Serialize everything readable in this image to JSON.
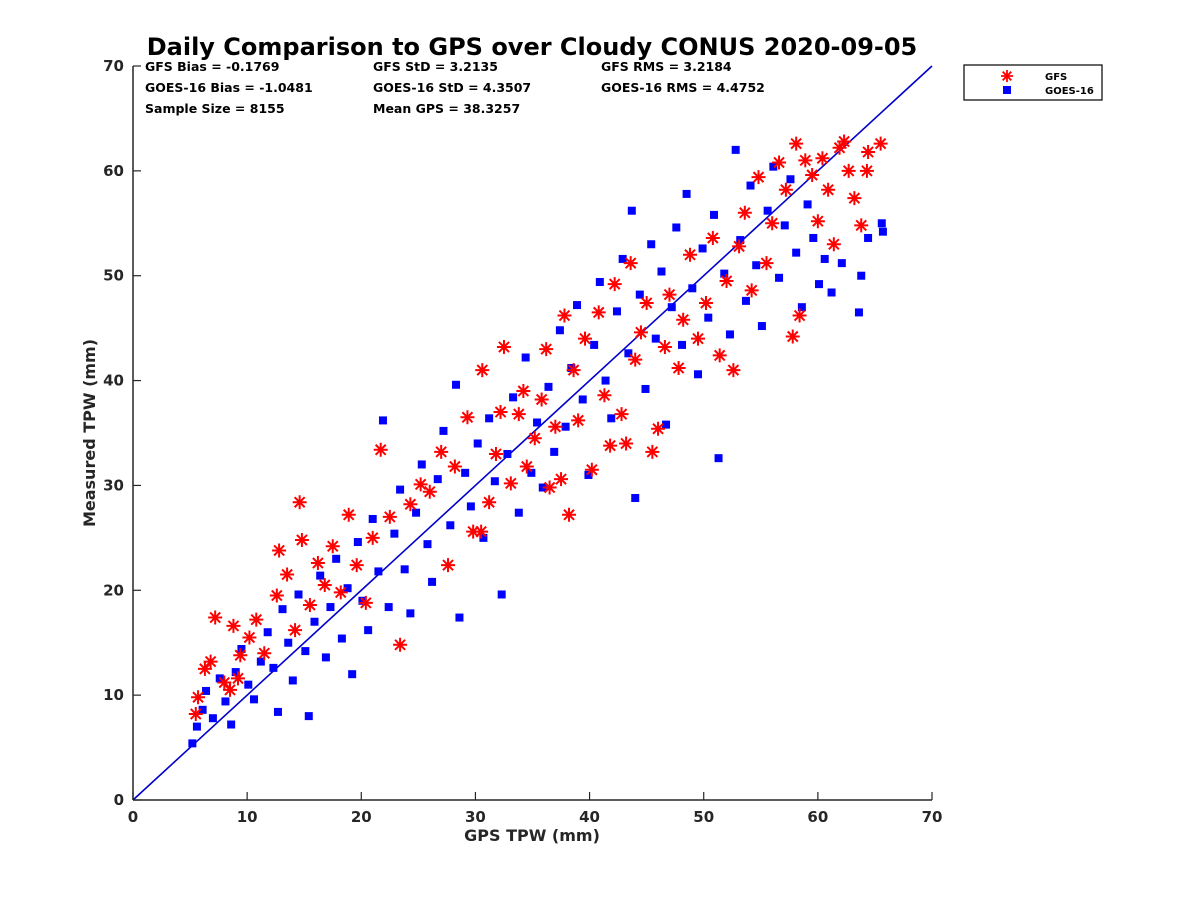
{
  "chart_data": {
    "type": "scatter",
    "title": "Daily Comparison to GPS over Cloudy CONUS 2020-09-05",
    "xlabel": "GPS TPW (mm)",
    "ylabel": "Measured TPW (mm)",
    "xlim": [
      0,
      70
    ],
    "ylim": [
      0,
      70
    ],
    "xticks": [
      "0",
      "10",
      "20",
      "30",
      "40",
      "50",
      "60",
      "70"
    ],
    "yticks": [
      "0",
      "10",
      "20",
      "30",
      "40",
      "50",
      "60",
      "70"
    ],
    "grid": false,
    "legend_position": "outside top-right",
    "stats": {
      "gfs_bias": "GFS Bias = -0.1769",
      "goes_bias": "GOES-16 Bias = -1.0481",
      "sample_size": "Sample Size = 8155",
      "gfs_std": "GFS StD = 3.2135",
      "goes_std": "GOES-16 StD = 4.3507",
      "mean_gps": "Mean GPS = 38.3257",
      "gfs_rms": "GFS RMS = 3.2184",
      "goes_rms": "GOES-16 RMS = 4.4752"
    },
    "reference_line": {
      "x": [
        0,
        70
      ],
      "y": [
        0,
        70
      ],
      "color": "#0000cc"
    },
    "series": [
      {
        "name": "GFS",
        "marker": "asterisk",
        "color": "#ff0000",
        "points": [
          [
            5.5,
            8.2
          ],
          [
            5.7,
            9.8
          ],
          [
            6.3,
            12.5
          ],
          [
            6.8,
            13.2
          ],
          [
            7.2,
            17.4
          ],
          [
            8.0,
            11.2
          ],
          [
            8.5,
            10.5
          ],
          [
            8.8,
            16.6
          ],
          [
            9.2,
            11.6
          ],
          [
            9.4,
            13.8
          ],
          [
            10.2,
            15.5
          ],
          [
            10.8,
            17.2
          ],
          [
            11.5,
            14.0
          ],
          [
            12.6,
            19.5
          ],
          [
            12.8,
            23.8
          ],
          [
            13.5,
            21.5
          ],
          [
            14.2,
            16.2
          ],
          [
            14.6,
            28.4
          ],
          [
            14.8,
            24.8
          ],
          [
            15.5,
            18.6
          ],
          [
            16.2,
            22.6
          ],
          [
            16.8,
            20.5
          ],
          [
            17.5,
            24.2
          ],
          [
            18.2,
            19.8
          ],
          [
            18.9,
            27.2
          ],
          [
            19.6,
            22.4
          ],
          [
            20.4,
            18.8
          ],
          [
            21.0,
            25.0
          ],
          [
            21.7,
            33.4
          ],
          [
            22.5,
            27.0
          ],
          [
            23.4,
            14.8
          ],
          [
            24.3,
            28.2
          ],
          [
            25.2,
            30.1
          ],
          [
            26.0,
            29.4
          ],
          [
            27.0,
            33.2
          ],
          [
            27.6,
            22.4
          ],
          [
            28.2,
            31.8
          ],
          [
            29.3,
            36.5
          ],
          [
            29.8,
            25.6
          ],
          [
            30.5,
            25.6
          ],
          [
            30.6,
            41.0
          ],
          [
            31.2,
            28.4
          ],
          [
            31.8,
            33.0
          ],
          [
            32.2,
            37.0
          ],
          [
            32.5,
            43.2
          ],
          [
            33.1,
            30.2
          ],
          [
            33.8,
            36.8
          ],
          [
            34.2,
            39.0
          ],
          [
            34.5,
            31.8
          ],
          [
            35.2,
            34.5
          ],
          [
            35.8,
            38.2
          ],
          [
            36.2,
            43.0
          ],
          [
            36.5,
            29.8
          ],
          [
            37.0,
            35.6
          ],
          [
            37.5,
            30.6
          ],
          [
            37.8,
            46.2
          ],
          [
            38.2,
            27.2
          ],
          [
            38.6,
            41.0
          ],
          [
            39.0,
            36.2
          ],
          [
            39.6,
            44.0
          ],
          [
            40.2,
            31.5
          ],
          [
            40.8,
            46.5
          ],
          [
            41.3,
            38.6
          ],
          [
            41.8,
            33.8
          ],
          [
            42.2,
            49.2
          ],
          [
            42.8,
            36.8
          ],
          [
            43.2,
            34.0
          ],
          [
            43.6,
            51.2
          ],
          [
            44.0,
            42.0
          ],
          [
            44.5,
            44.6
          ],
          [
            45.0,
            47.4
          ],
          [
            45.5,
            33.2
          ],
          [
            46.0,
            35.4
          ],
          [
            46.6,
            43.2
          ],
          [
            47.0,
            48.2
          ],
          [
            47.8,
            41.2
          ],
          [
            48.2,
            45.8
          ],
          [
            48.8,
            52.0
          ],
          [
            49.5,
            44.0
          ],
          [
            50.2,
            47.4
          ],
          [
            50.8,
            53.6
          ],
          [
            51.4,
            42.4
          ],
          [
            52.0,
            49.5
          ],
          [
            52.6,
            41.0
          ],
          [
            53.1,
            52.8
          ],
          [
            53.6,
            56.0
          ],
          [
            54.2,
            48.6
          ],
          [
            54.8,
            59.4
          ],
          [
            55.5,
            51.2
          ],
          [
            56.0,
            55.0
          ],
          [
            56.6,
            60.8
          ],
          [
            57.2,
            58.2
          ],
          [
            57.8,
            44.2
          ],
          [
            58.1,
            62.6
          ],
          [
            58.4,
            46.2
          ],
          [
            58.9,
            61.0
          ],
          [
            59.5,
            59.6
          ],
          [
            60.0,
            55.2
          ],
          [
            60.4,
            61.2
          ],
          [
            60.9,
            58.2
          ],
          [
            61.4,
            53.0
          ],
          [
            61.9,
            62.2
          ],
          [
            62.3,
            62.8
          ],
          [
            62.7,
            60.0
          ],
          [
            63.2,
            57.4
          ],
          [
            63.8,
            54.8
          ],
          [
            64.3,
            60.0
          ],
          [
            64.4,
            61.8
          ],
          [
            65.5,
            62.6
          ]
        ]
      },
      {
        "name": "GOES-16",
        "marker": "square",
        "color": "#0000ff",
        "points": [
          [
            5.2,
            5.4
          ],
          [
            5.6,
            7.0
          ],
          [
            6.1,
            8.6
          ],
          [
            6.4,
            10.4
          ],
          [
            7.0,
            7.8
          ],
          [
            7.6,
            11.6
          ],
          [
            8.1,
            9.4
          ],
          [
            8.6,
            7.2
          ],
          [
            9.0,
            12.2
          ],
          [
            9.5,
            14.4
          ],
          [
            10.1,
            11.0
          ],
          [
            10.6,
            9.6
          ],
          [
            11.2,
            13.2
          ],
          [
            11.8,
            16.0
          ],
          [
            12.3,
            12.6
          ],
          [
            12.7,
            8.4
          ],
          [
            13.1,
            18.2
          ],
          [
            13.6,
            15.0
          ],
          [
            14.0,
            11.4
          ],
          [
            14.5,
            19.6
          ],
          [
            15.1,
            14.2
          ],
          [
            15.4,
            8.0
          ],
          [
            15.9,
            17.0
          ],
          [
            16.4,
            21.4
          ],
          [
            16.9,
            13.6
          ],
          [
            17.3,
            18.4
          ],
          [
            17.8,
            23.0
          ],
          [
            18.3,
            15.4
          ],
          [
            18.8,
            20.2
          ],
          [
            19.2,
            12.0
          ],
          [
            19.7,
            24.6
          ],
          [
            20.1,
            19.0
          ],
          [
            20.6,
            16.2
          ],
          [
            21.0,
            26.8
          ],
          [
            21.5,
            21.8
          ],
          [
            21.9,
            36.2
          ],
          [
            22.4,
            18.4
          ],
          [
            22.9,
            25.4
          ],
          [
            23.4,
            29.6
          ],
          [
            23.8,
            22.0
          ],
          [
            24.3,
            17.8
          ],
          [
            24.8,
            27.4
          ],
          [
            25.3,
            32.0
          ],
          [
            25.8,
            24.4
          ],
          [
            26.2,
            20.8
          ],
          [
            26.7,
            30.6
          ],
          [
            27.2,
            35.2
          ],
          [
            27.8,
            26.2
          ],
          [
            28.3,
            39.6
          ],
          [
            28.6,
            17.4
          ],
          [
            29.1,
            31.2
          ],
          [
            29.6,
            28.0
          ],
          [
            30.2,
            34.0
          ],
          [
            30.7,
            25.0
          ],
          [
            31.2,
            36.4
          ],
          [
            31.7,
            30.4
          ],
          [
            32.3,
            19.6
          ],
          [
            32.8,
            33.0
          ],
          [
            33.3,
            38.4
          ],
          [
            33.8,
            27.4
          ],
          [
            34.4,
            42.2
          ],
          [
            34.9,
            31.2
          ],
          [
            35.4,
            36.0
          ],
          [
            35.9,
            29.8
          ],
          [
            36.4,
            39.4
          ],
          [
            36.9,
            33.2
          ],
          [
            37.4,
            44.8
          ],
          [
            37.9,
            35.6
          ],
          [
            38.4,
            41.2
          ],
          [
            38.9,
            47.2
          ],
          [
            39.4,
            38.2
          ],
          [
            39.9,
            31.0
          ],
          [
            40.4,
            43.4
          ],
          [
            40.9,
            49.4
          ],
          [
            41.4,
            40.0
          ],
          [
            41.9,
            36.4
          ],
          [
            42.4,
            46.6
          ],
          [
            42.9,
            51.6
          ],
          [
            43.4,
            42.6
          ],
          [
            43.7,
            56.2
          ],
          [
            44.0,
            28.8
          ],
          [
            44.4,
            48.2
          ],
          [
            44.9,
            39.2
          ],
          [
            45.4,
            53.0
          ],
          [
            45.8,
            44.0
          ],
          [
            46.3,
            50.4
          ],
          [
            46.7,
            35.8
          ],
          [
            47.2,
            47.0
          ],
          [
            47.6,
            54.6
          ],
          [
            48.1,
            43.4
          ],
          [
            48.5,
            57.8
          ],
          [
            49.0,
            48.8
          ],
          [
            49.5,
            40.6
          ],
          [
            49.9,
            52.6
          ],
          [
            50.4,
            46.0
          ],
          [
            50.9,
            55.8
          ],
          [
            51.3,
            32.6
          ],
          [
            51.8,
            50.2
          ],
          [
            52.3,
            44.4
          ],
          [
            52.8,
            62.0
          ],
          [
            53.2,
            53.4
          ],
          [
            53.7,
            47.6
          ],
          [
            54.1,
            58.6
          ],
          [
            54.6,
            51.0
          ],
          [
            55.1,
            45.2
          ],
          [
            55.6,
            56.2
          ],
          [
            56.1,
            60.4
          ],
          [
            56.6,
            49.8
          ],
          [
            57.1,
            54.8
          ],
          [
            57.6,
            59.2
          ],
          [
            58.1,
            52.2
          ],
          [
            58.6,
            47.0
          ],
          [
            59.1,
            56.8
          ],
          [
            59.6,
            53.6
          ],
          [
            60.1,
            49.2
          ],
          [
            60.6,
            51.6
          ],
          [
            61.2,
            48.4
          ],
          [
            62.1,
            51.2
          ],
          [
            63.6,
            46.5
          ],
          [
            63.8,
            50.0
          ],
          [
            64.4,
            53.6
          ],
          [
            65.6,
            55.0
          ],
          [
            65.7,
            54.2
          ]
        ]
      }
    ]
  }
}
